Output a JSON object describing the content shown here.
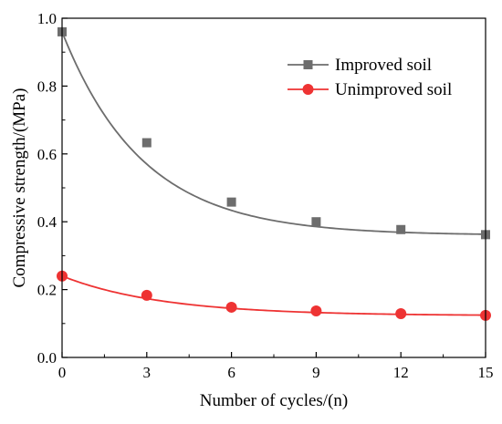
{
  "chart_data": {
    "type": "scatter",
    "title": "",
    "xlabel": "Number of cycles/(n)",
    "ylabel": "Compressive strength/(MPa)",
    "xlim": [
      0,
      15
    ],
    "ylim": [
      0.0,
      1.0
    ],
    "xticks": [
      0,
      3,
      6,
      9,
      12,
      15
    ],
    "xtick_labels": [
      "0",
      "3",
      "6",
      "9",
      "12",
      "15"
    ],
    "yticks": [
      0.0,
      0.2,
      0.4,
      0.6,
      0.8,
      1.0
    ],
    "ytick_labels": [
      "0.0",
      "0.2",
      "0.4",
      "0.6",
      "0.8",
      "1.0"
    ],
    "grid": false,
    "legend_position": "top-right",
    "series": [
      {
        "name": "Improved soil",
        "marker": "square",
        "color": "#6d6d6d",
        "x": [
          0,
          3,
          6,
          9,
          12,
          15
        ],
        "y": [
          0.96,
          0.633,
          0.458,
          0.4,
          0.377,
          0.362
        ],
        "fit": {
          "model": "exponential",
          "y0": 0.36,
          "A": 0.6,
          "rate": 0.35
        }
      },
      {
        "name": "Unimproved soil",
        "marker": "circle",
        "color": "#ee3333",
        "x": [
          0,
          3,
          6,
          9,
          12,
          15
        ],
        "y": [
          0.24,
          0.183,
          0.148,
          0.137,
          0.129,
          0.124
        ],
        "fit": {
          "model": "exponential",
          "y0": 0.123,
          "A": 0.117,
          "rate": 0.28
        }
      }
    ]
  }
}
